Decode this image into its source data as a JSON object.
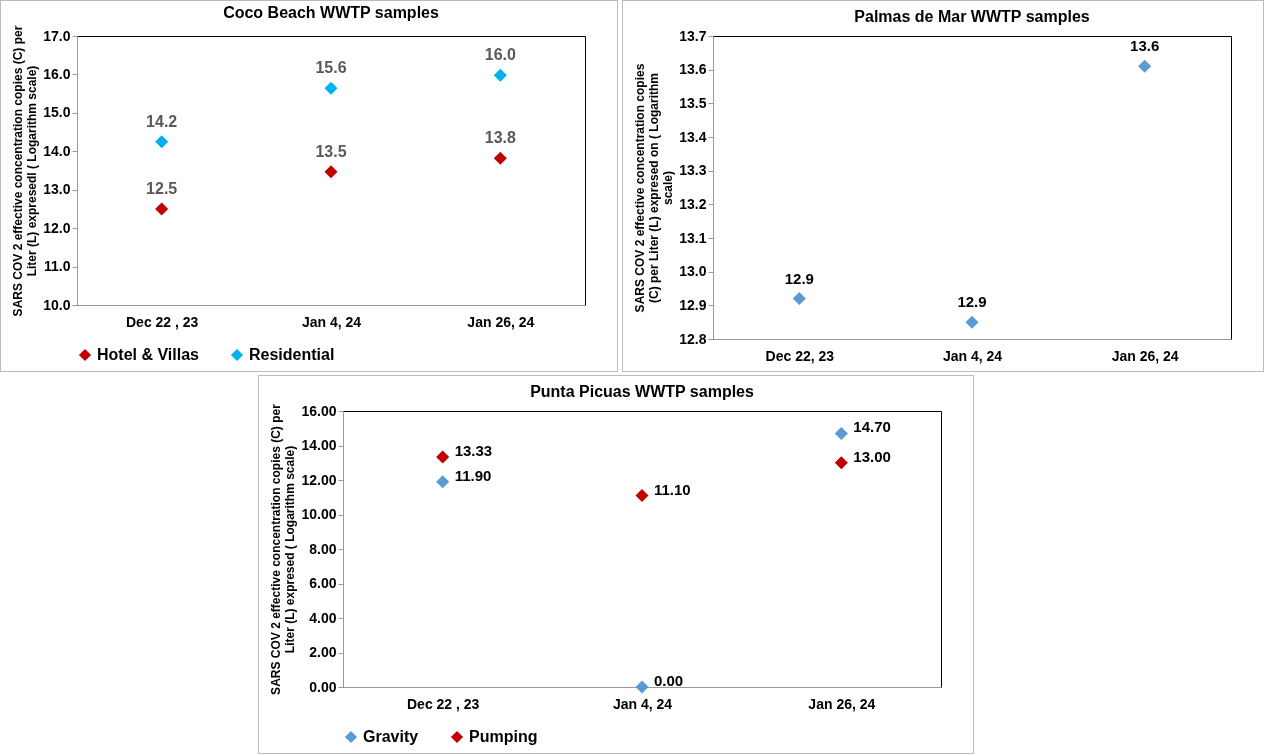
{
  "chart_data": [
    {
      "type": "scatter",
      "title": "Coco Beach WWTP samples",
      "ylabel": "SARS COV 2 effective concentration copies (C) per Liter (L) expresedl ( Logarithm scale)",
      "categories": [
        "Dec 22 , 23",
        "Jan 4, 24",
        "Jan 26, 24"
      ],
      "series": [
        {
          "name": "Hotel & Villas",
          "color": "#c00000",
          "values": [
            12.5,
            13.47,
            13.82
          ],
          "value_labels": [
            "12.5",
            "13.5",
            "13.8"
          ]
        },
        {
          "name": "Residential",
          "color": "#00b0f0",
          "values": [
            14.25,
            15.64,
            15.98
          ],
          "value_labels": [
            "14.2",
            "15.6",
            "16.0"
          ]
        }
      ],
      "ylim": [
        10,
        17
      ],
      "yticks": [
        {
          "value": 10,
          "label": "10.0"
        },
        {
          "value": 11,
          "label": "11.0"
        },
        {
          "value": 12,
          "label": "12.0"
        },
        {
          "value": 13,
          "label": "13.0"
        },
        {
          "value": 14,
          "label": "14.0"
        },
        {
          "value": 15,
          "label": "15.0"
        },
        {
          "value": 16,
          "label": "16.0"
        },
        {
          "value": 17,
          "label": "17.0"
        }
      ],
      "marker": "diamond",
      "legend": "bottom"
    },
    {
      "type": "scatter",
      "title": "Palmas de Mar WWTP samples",
      "ylabel": "SARS COV 2 effective concentration copies (C) per Liter (L) expresed on ( Logarithm scale)",
      "categories": [
        "Dec 22, 23",
        "Jan 4, 24",
        "Jan 26, 24"
      ],
      "series": [
        {
          "color": "#5b9bd5",
          "values": [
            12.92,
            12.85,
            13.61
          ],
          "value_labels": [
            "12.9",
            "12.9",
            "13.6"
          ]
        }
      ],
      "ylim": [
        12.8,
        13.7
      ],
      "yticks": [
        12.8,
        12.9,
        {
          "value": 13,
          "label": "13.0"
        },
        13.1,
        13.2,
        13.3,
        13.4,
        13.5,
        13.6,
        13.7
      ],
      "marker": "diamond"
    },
    {
      "type": "scatter",
      "title": "Punta Picuas WWTP samples",
      "ylabel": "SARS COV 2 effective concentration copies (C) per Liter (L) expresed ( Logarithm scale)",
      "categories": [
        "Dec 22 , 23",
        "Jan 4, 24",
        "Jan 26, 24"
      ],
      "series": [
        {
          "name": "Gravity",
          "color": "#5b9bd5",
          "values": [
            11.9,
            0,
            14.7
          ],
          "value_labels": [
            "11.90",
            "0.00",
            "14.70"
          ]
        },
        {
          "name": "Pumping",
          "color": "#c00000",
          "values": [
            13.33,
            11.1,
            13.0
          ],
          "value_labels": [
            "13.33",
            "11.10",
            "13.00"
          ]
        }
      ],
      "ylim": [
        0,
        16
      ],
      "yticks": [
        {
          "value": 0,
          "label": "0.00"
        },
        {
          "value": 2,
          "label": "2.00"
        },
        {
          "value": 4,
          "label": "4.00"
        },
        {
          "value": 6,
          "label": "6.00"
        },
        {
          "value": 8,
          "label": "8.00"
        },
        {
          "value": 10,
          "label": "10.00"
        },
        {
          "value": 12,
          "label": "12.00"
        },
        {
          "value": 14,
          "label": "14.00"
        },
        {
          "value": 16,
          "label": "16.00"
        }
      ],
      "marker": "diamond",
      "legend": "bottom"
    }
  ]
}
